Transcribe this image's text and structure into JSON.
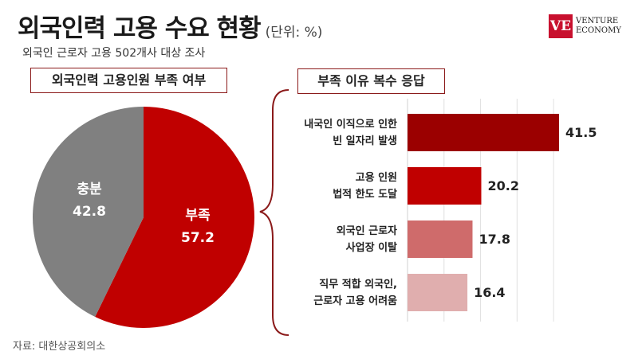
{
  "header": {
    "title": "외국인력 고용 수요 현황",
    "unit": "(단위: %)",
    "subtitle": "외국인 근로자 고용 502개사 대상 조사"
  },
  "logo": {
    "mark": "VE",
    "line1": "VENTURE",
    "line2": "ECONOMY"
  },
  "source": "자료: 대한상공회의소",
  "chart_data": [
    {
      "type": "pie",
      "title": "외국인력 고용인원 부족 여부",
      "slices": [
        {
          "name": "부족",
          "value": 57.2,
          "label": "57.2",
          "color": "#c00000"
        },
        {
          "name": "충분",
          "value": 42.8,
          "label": "42.8",
          "color": "#808080"
        }
      ]
    },
    {
      "type": "bar",
      "orientation": "horizontal",
      "title": "부족 이유 복수 응답",
      "categories": [
        [
          "내국인 이직으로 인한",
          "빈 일자리 발생"
        ],
        [
          "고용 인원",
          "법적 한도 도달"
        ],
        [
          "외국인 근로자",
          "사업장 이탈"
        ],
        [
          "직무 적합 외국인,",
          "근로자 고용 어려움"
        ]
      ],
      "values": [
        41.5,
        20.2,
        17.8,
        16.4
      ],
      "labels": [
        "41.5",
        "20.2",
        "17.8",
        "16.4"
      ],
      "colors": [
        "#9b0000",
        "#c00000",
        "#cf6b6b",
        "#e0aeae"
      ],
      "xlim": [
        0,
        45
      ],
      "grid": true
    }
  ]
}
